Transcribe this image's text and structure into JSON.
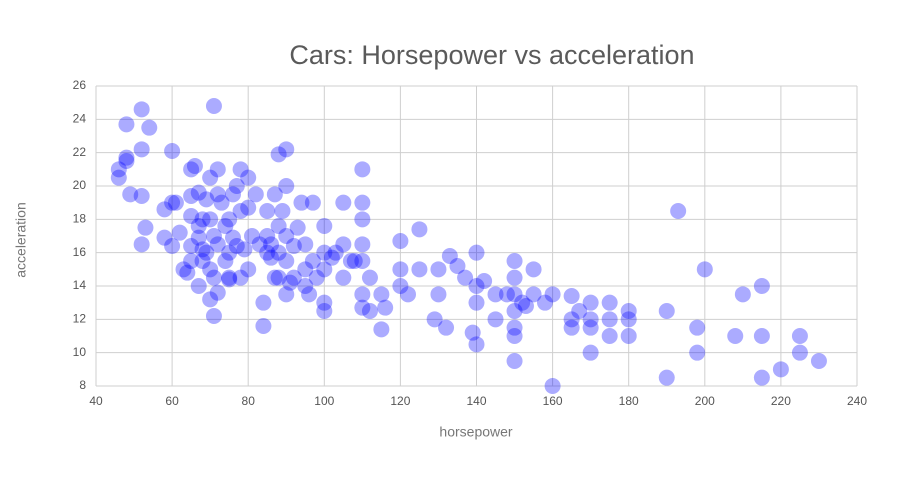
{
  "chart_data": {
    "type": "scatter",
    "title": "Cars: Horsepower vs acceleration",
    "x_label": "horsepower",
    "y_label": "acceleration",
    "color": "#0000ff",
    "grid": true,
    "xlim": [
      40,
      240
    ],
    "xticks": [
      40,
      60,
      80,
      100,
      120,
      140,
      160,
      180,
      200,
      220,
      240
    ],
    "ylim": [
      8,
      26
    ],
    "yticks": [
      8,
      10,
      12,
      14,
      16,
      18,
      20,
      22,
      24,
      26
    ],
    "x": [
      46,
      46,
      48,
      48,
      48,
      49,
      52,
      52,
      52,
      52,
      53,
      54,
      58,
      58,
      60,
      60,
      60,
      61,
      62,
      63,
      64,
      65,
      65,
      65,
      65,
      65,
      66,
      67,
      67,
      67,
      67,
      68,
      68,
      68,
      69,
      69,
      70,
      70,
      70,
      70,
      71,
      71,
      71,
      71,
      72,
      72,
      72,
      72,
      73,
      74,
      74,
      75,
      75,
      75,
      75,
      76,
      76,
      77,
      77,
      78,
      78,
      78,
      79,
      80,
      80,
      80,
      81,
      82,
      83,
      84,
      84,
      85,
      85,
      85,
      86,
      86,
      87,
      87,
      88,
      88,
      88,
      88,
      89,
      90,
      90,
      90,
      90,
      90,
      91,
      92,
      92,
      93,
      94,
      95,
      95,
      95,
      96,
      97,
      97,
      98,
      100,
      100,
      100,
      100,
      100,
      102,
      103,
      105,
      105,
      105,
      107,
      108,
      110,
      110,
      110,
      110,
      110,
      110,
      110,
      112,
      112,
      115,
      115,
      116,
      120,
      120,
      120,
      122,
      125,
      125,
      129,
      130,
      130,
      132,
      133,
      135,
      137,
      139,
      140,
      140,
      140,
      140,
      142,
      145,
      145,
      148,
      150,
      150,
      150,
      150,
      150,
      150,
      150,
      152,
      153,
      155,
      155,
      158,
      160,
      160,
      165,
      165,
      165,
      167,
      170,
      170,
      170,
      170,
      175,
      175,
      175,
      180,
      180,
      180,
      190,
      190,
      193,
      198,
      198,
      200,
      208,
      210,
      215,
      215,
      215,
      220,
      225,
      225,
      230
    ],
    "values": [
      20.5,
      21,
      21.5,
      21.7,
      23.7,
      19.5,
      24.6,
      22.2,
      19.4,
      16.5,
      17.5,
      23.5,
      18.6,
      16.9,
      22.1,
      19,
      16.4,
      19,
      17.2,
      15,
      14.8,
      21,
      19.4,
      18.2,
      16.4,
      15.5,
      21.2,
      19.6,
      17.6,
      16.9,
      14,
      16.2,
      15.5,
      18,
      19.2,
      16,
      20.5,
      18,
      15,
      13.2,
      24.8,
      17,
      14.5,
      12.2,
      19.5,
      21,
      16.5,
      13.6,
      19,
      15.5,
      17.6,
      18,
      16,
      14.5,
      14.4,
      19.5,
      16.9,
      20,
      16.4,
      21,
      18.5,
      14.5,
      16.2,
      20.5,
      15,
      18.7,
      17,
      19.5,
      16.5,
      13,
      11.6,
      17,
      16,
      18.5,
      16.5,
      15.7,
      14.5,
      19.5,
      21.9,
      17.6,
      16,
      14.5,
      18.5,
      22.2,
      20,
      17,
      15.5,
      13.5,
      14.2,
      16.4,
      14.5,
      17.5,
      19,
      16.5,
      15,
      14,
      13.5,
      15.5,
      19,
      14.5,
      17.6,
      16,
      15,
      13,
      12.5,
      15.7,
      16,
      19,
      16.5,
      14.5,
      15.5,
      15.5,
      21,
      19,
      18,
      16.5,
      15.5,
      13.5,
      12.7,
      14.5,
      12.5,
      13.5,
      11.4,
      12.7,
      16.7,
      15,
      14,
      13.5,
      17.4,
      15,
      12,
      15,
      13.5,
      11.5,
      15.8,
      15.2,
      14.5,
      11.2,
      16,
      14,
      13,
      10.5,
      14.3,
      13.5,
      12,
      13.5,
      15.5,
      14.5,
      13.5,
      12.5,
      11.5,
      11,
      9.5,
      13,
      12.8,
      15,
      13.5,
      13,
      8,
      13.5,
      12,
      11.5,
      13.4,
      12.5,
      13,
      12,
      11.5,
      10,
      12,
      11,
      13,
      12.5,
      12,
      11,
      12.5,
      8.5,
      18.5,
      11.5,
      10,
      15,
      11,
      13.5,
      14,
      11,
      8.5,
      9,
      11,
      10,
      9.5
    ]
  }
}
